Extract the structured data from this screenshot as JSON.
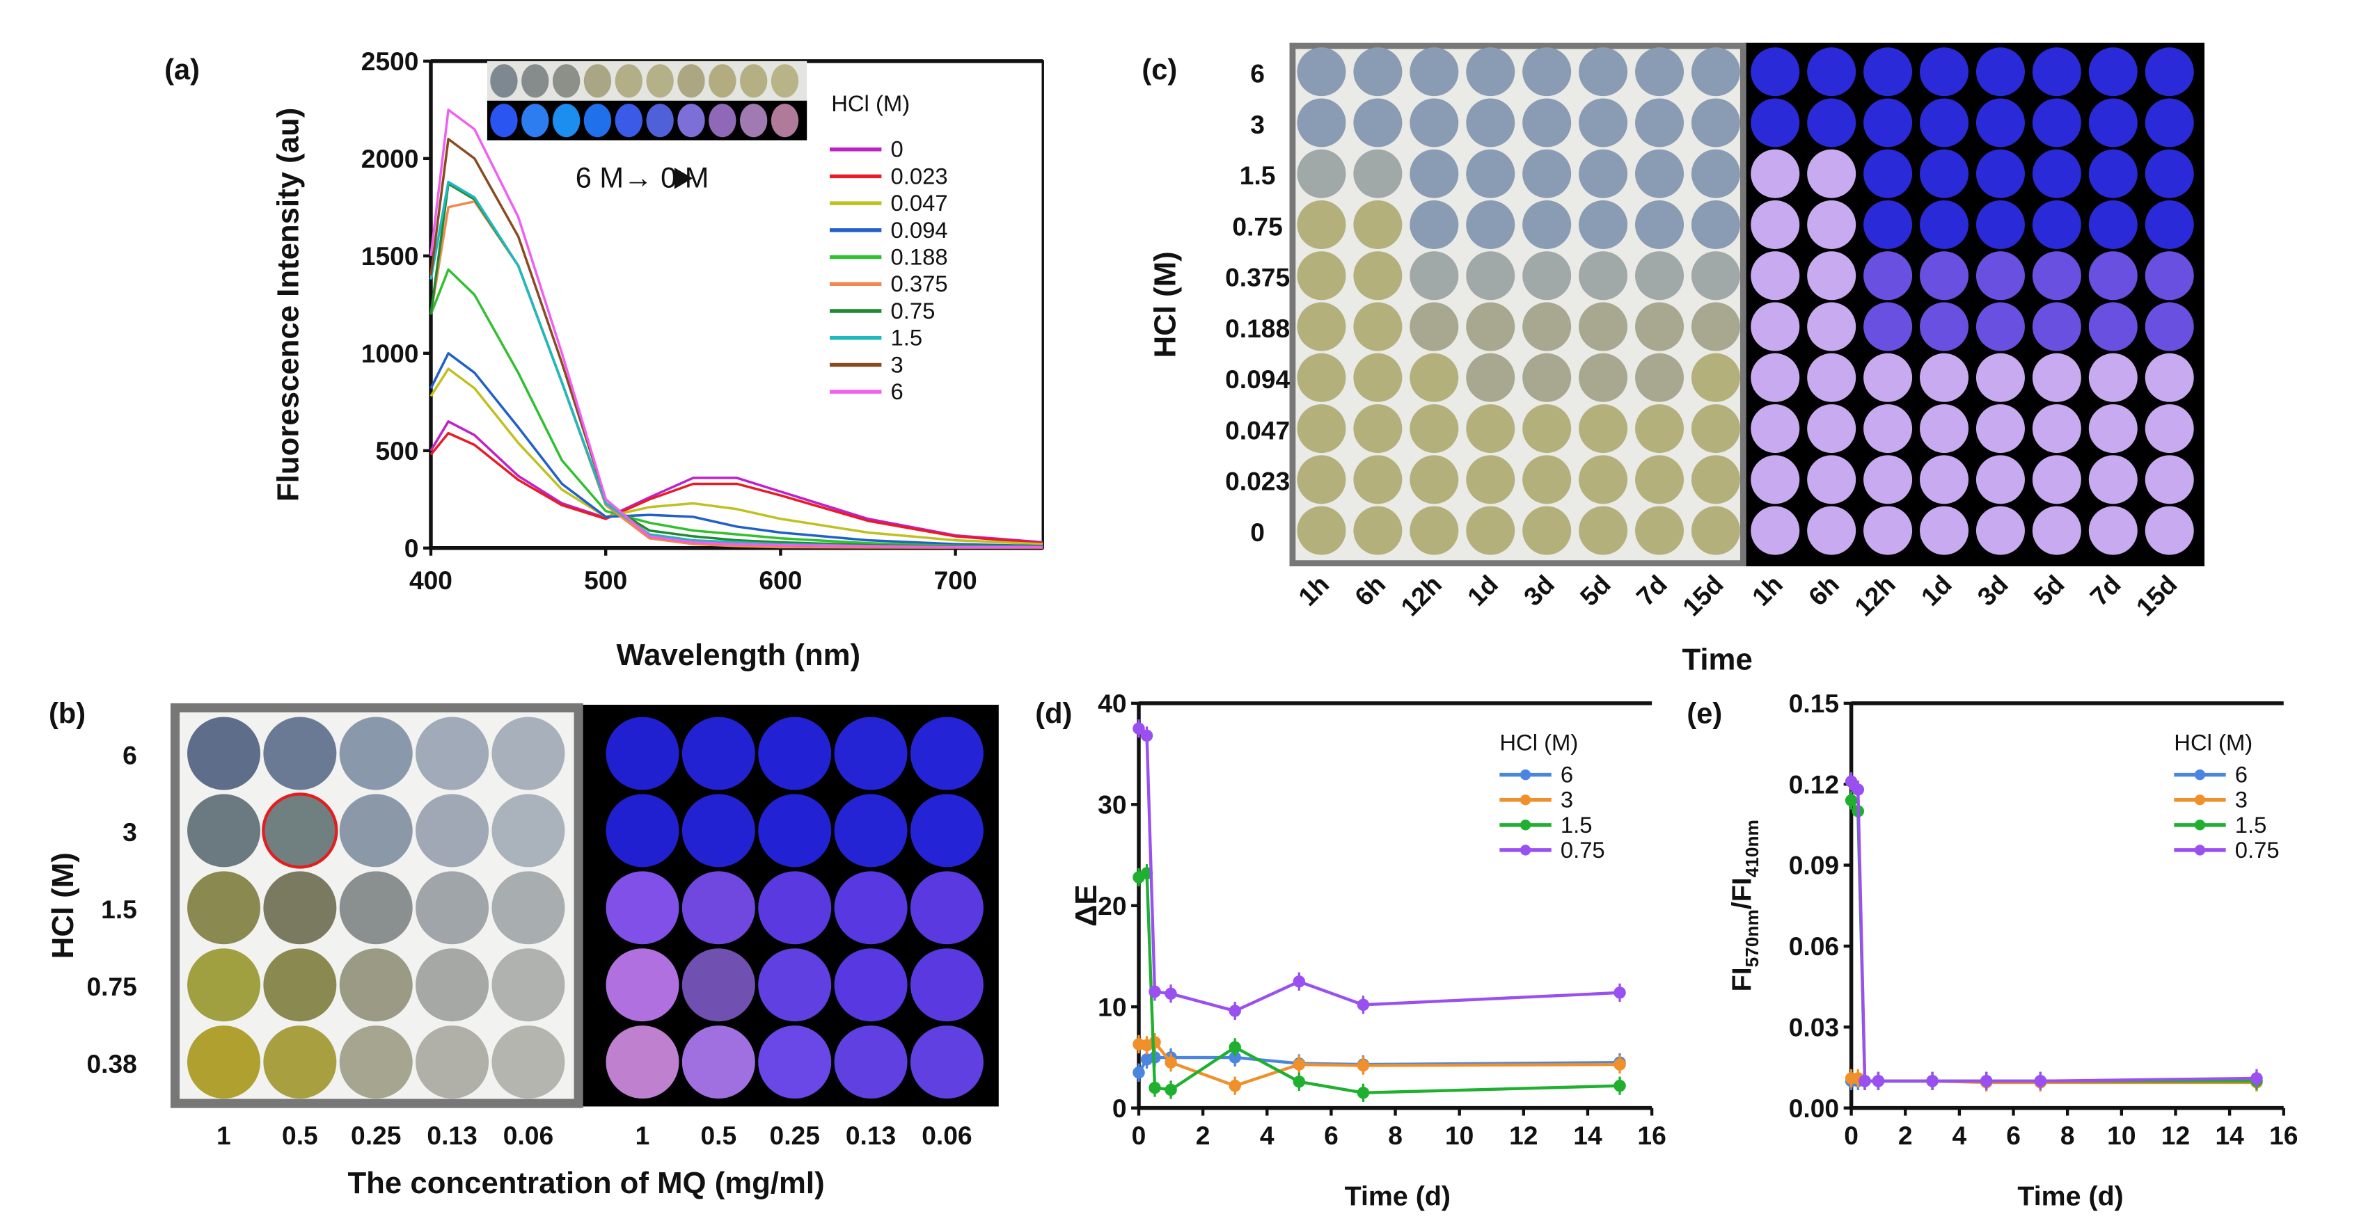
{
  "panel_labels": {
    "a": "(a)",
    "b": "(b)",
    "c": "(c)",
    "d": "(d)",
    "e": "(e)"
  },
  "chart_data": [
    {
      "id": "a",
      "type": "line",
      "xlabel": "Wavelength (nm)",
      "ylabel": "Fluorescence Intensity (au)",
      "xlim": [
        400,
        750
      ],
      "ylim": [
        0,
        2500
      ],
      "xticks": [
        400,
        500,
        600,
        700
      ],
      "yticks": [
        0,
        500,
        1000,
        1500,
        2000,
        2500
      ],
      "legend_title": "HCl (M)",
      "legend_position": "right",
      "annotation": "6 M→ 0 M",
      "inset_colors_daylight": [
        "#7d8890",
        "#868c8c",
        "#8c9088",
        "#a8a684",
        "#b2ae88",
        "#b4b088",
        "#aca682",
        "#b2ac80",
        "#b4b084",
        "#b8b488"
      ],
      "inset_colors_uv": [
        "#2a55f0",
        "#2d7cf0",
        "#1c8ef0",
        "#2070ec",
        "#3a5ae8",
        "#5060d8",
        "#7c70d8",
        "#9068b8",
        "#a07ab0",
        "#b07a9a"
      ],
      "x": [
        400,
        410,
        425,
        450,
        475,
        500,
        525,
        550,
        575,
        600,
        650,
        700,
        750
      ],
      "series": [
        {
          "name": "0",
          "color": "#c020c8",
          "values": [
            500,
            650,
            580,
            370,
            230,
            155,
            260,
            360,
            360,
            290,
            150,
            65,
            30
          ]
        },
        {
          "name": "0.023",
          "color": "#e81c24",
          "values": [
            480,
            590,
            530,
            350,
            220,
            150,
            250,
            330,
            330,
            270,
            140,
            60,
            25
          ]
        },
        {
          "name": "0.047",
          "color": "#c0c020",
          "values": [
            780,
            920,
            820,
            540,
            300,
            160,
            210,
            230,
            200,
            150,
            80,
            40,
            20
          ]
        },
        {
          "name": "0.094",
          "color": "#2060c8",
          "values": [
            820,
            1000,
            900,
            620,
            330,
            160,
            170,
            160,
            110,
            80,
            40,
            20,
            10
          ]
        },
        {
          "name": "0.188",
          "color": "#30c030",
          "values": [
            1200,
            1430,
            1300,
            900,
            450,
            190,
            130,
            90,
            70,
            50,
            25,
            12,
            6
          ]
        },
        {
          "name": "0.375",
          "color": "#f08850",
          "values": [
            1200,
            1750,
            1780,
            1450,
            850,
            220,
            50,
            20,
            10,
            5,
            3,
            2,
            2
          ]
        },
        {
          "name": "0.75",
          "color": "#208a30",
          "values": [
            1200,
            1870,
            1790,
            1450,
            850,
            230,
            90,
            60,
            40,
            30,
            15,
            8,
            5
          ]
        },
        {
          "name": "1.5",
          "color": "#20b8c0",
          "values": [
            1380,
            1880,
            1800,
            1450,
            850,
            230,
            70,
            40,
            30,
            20,
            10,
            5,
            5
          ]
        },
        {
          "name": "3",
          "color": "#8a4a20",
          "values": [
            1400,
            2100,
            2000,
            1600,
            950,
            250,
            60,
            30,
            20,
            15,
            10,
            5,
            5
          ]
        },
        {
          "name": "6",
          "color": "#f060f0",
          "values": [
            1500,
            2250,
            2150,
            1700,
            1000,
            250,
            60,
            30,
            20,
            15,
            10,
            5,
            5
          ]
        }
      ]
    },
    {
      "id": "d",
      "type": "line",
      "xlabel": "Time (d)",
      "ylabel": "ΔE",
      "xlim": [
        0,
        16
      ],
      "ylim": [
        0,
        40
      ],
      "xticks": [
        0,
        2,
        4,
        6,
        8,
        10,
        12,
        14,
        16
      ],
      "yticks": [
        0,
        10,
        20,
        30,
        40
      ],
      "legend_title": "HCl (M)",
      "legend_position": "top-right",
      "x": [
        0,
        0.25,
        0.5,
        1,
        3,
        5,
        7,
        15
      ],
      "series": [
        {
          "name": "6",
          "color": "#4a86e0",
          "values": [
            3.5,
            4.8,
            5.0,
            5.0,
            5.0,
            4.4,
            4.3,
            4.5
          ]
        },
        {
          "name": "3",
          "color": "#f0902a",
          "values": [
            6.3,
            6.2,
            6.5,
            4.5,
            2.2,
            4.3,
            4.2,
            4.3
          ]
        },
        {
          "name": "1.5",
          "color": "#20b030",
          "values": [
            22.8,
            23.2,
            2.0,
            1.8,
            6.0,
            2.6,
            1.5,
            2.2
          ]
        },
        {
          "name": "0.75",
          "color": "#9a50f0",
          "values": [
            37.5,
            36.8,
            11.5,
            11.3,
            9.6,
            12.5,
            10.2,
            11.4
          ]
        }
      ]
    },
    {
      "id": "e",
      "type": "line",
      "xlabel": "Time (d)",
      "ylabel": "FI570nm/FI410nm",
      "ylabel_parts": [
        "FI",
        "570nm",
        "/FI",
        "410nm"
      ],
      "xlim": [
        0,
        16
      ],
      "ylim": [
        0,
        0.15
      ],
      "xticks": [
        0,
        2,
        4,
        6,
        8,
        10,
        12,
        14,
        16
      ],
      "yticks": [
        "0.00",
        "0.03",
        "0.06",
        "0.09",
        "0.12",
        "0.15"
      ],
      "legend_title": "HCl (M)",
      "legend_position": "top-right",
      "x": [
        0,
        0.25,
        0.5,
        1,
        3,
        5,
        7,
        15
      ],
      "series": [
        {
          "name": "6",
          "color": "#4a86e0",
          "values": [
            0.01,
            0.01,
            0.01,
            0.01,
            0.01,
            0.01,
            0.01,
            0.01
          ]
        },
        {
          "name": "3",
          "color": "#f0902a",
          "values": [
            0.011,
            0.011,
            0.01,
            0.01,
            0.01,
            0.0095,
            0.0095,
            0.0095
          ]
        },
        {
          "name": "1.5",
          "color": "#20b030",
          "values": [
            0.114,
            0.11,
            0.01,
            0.01,
            0.01,
            0.01,
            0.01,
            0.01
          ]
        },
        {
          "name": "0.75",
          "color": "#9a50f0",
          "values": [
            0.121,
            0.118,
            0.01,
            0.01,
            0.01,
            0.01,
            0.01,
            0.011
          ]
        }
      ]
    }
  ],
  "panel_b": {
    "ylabel": "HCl (M)",
    "xlabel": "The concentration of MQ (mg/ml)",
    "rows": [
      "6",
      "3",
      "1.5",
      "0.75",
      "0.38"
    ],
    "cols": [
      "1",
      "0.5",
      "0.25",
      "0.13",
      "0.06"
    ],
    "daylight": [
      [
        "#5d6d8a",
        "#6a7a95",
        "#8a98ab",
        "#a0aab8",
        "#a8b0bc"
      ],
      [
        "#6a7a80",
        "#708080",
        "#8a98a8",
        "#a0a8b5",
        "#aab2bc"
      ],
      [
        "#8a8a50",
        "#7a7a60",
        "#8a9090",
        "#a0a5aa",
        "#a8adb0"
      ],
      [
        "#a0a040",
        "#8a8a50",
        "#9a9a85",
        "#a5a8a5",
        "#b0b2b0"
      ],
      [
        "#b0a030",
        "#a8a040",
        "#a5a590",
        "#b0b0a8",
        "#b5b5b0"
      ]
    ],
    "uv": [
      [
        "#2020d0",
        "#2222d2",
        "#2222d4",
        "#2424d4",
        "#2424d6"
      ],
      [
        "#2020d0",
        "#2222d2",
        "#2222d4",
        "#2424d4",
        "#2424d6"
      ],
      [
        "#8050e8",
        "#7048e0",
        "#5a3ae0",
        "#5838e0",
        "#5a3ae0"
      ],
      [
        "#b070e0",
        "#7050b0",
        "#6040e0",
        "#5838e0",
        "#5a3ae0"
      ],
      [
        "#c080d0",
        "#a070e0",
        "#6a48e8",
        "#6040e0",
        "#6040e0"
      ]
    ],
    "highlight": "#e02020"
  },
  "panel_c": {
    "ylabel": "HCl (M)",
    "xlabel": "Time",
    "rows": [
      "6",
      "3",
      "1.5",
      "0.75",
      "0.375",
      "0.188",
      "0.094",
      "0.047",
      "0.023",
      "0"
    ],
    "cols": [
      "1h",
      "6h",
      "12h",
      "1d",
      "3d",
      "5d",
      "7d",
      "15d"
    ],
    "palette": {
      "B": "#8a9bb4",
      "G": "#a0a8a8",
      "Y": "#b4b07c",
      "S": "#a8a890",
      "U": "#2a2ad8",
      "M": "#6a50e0",
      "L": "#c8aaf0"
    },
    "daylight": [
      "BBBBBBBB",
      "BBBBBBBB",
      "GGBBBBBB",
      "YYBBBBBB",
      "YYGGGGGG",
      "YYSSSSSS",
      "YYYSSSSY",
      "YYYYYYYY",
      "YYYYYYYY",
      "YYYYYYYY"
    ],
    "uv": [
      "UUUUUUUU",
      "UUUUUUUU",
      "LLUUUUUU",
      "LLUUUUUU",
      "LLMMMMMM",
      "LLMMMMMM",
      "LLLLLLLL",
      "LLLLLLLL",
      "LLLLLLLL",
      "LLLLLLLL"
    ]
  }
}
